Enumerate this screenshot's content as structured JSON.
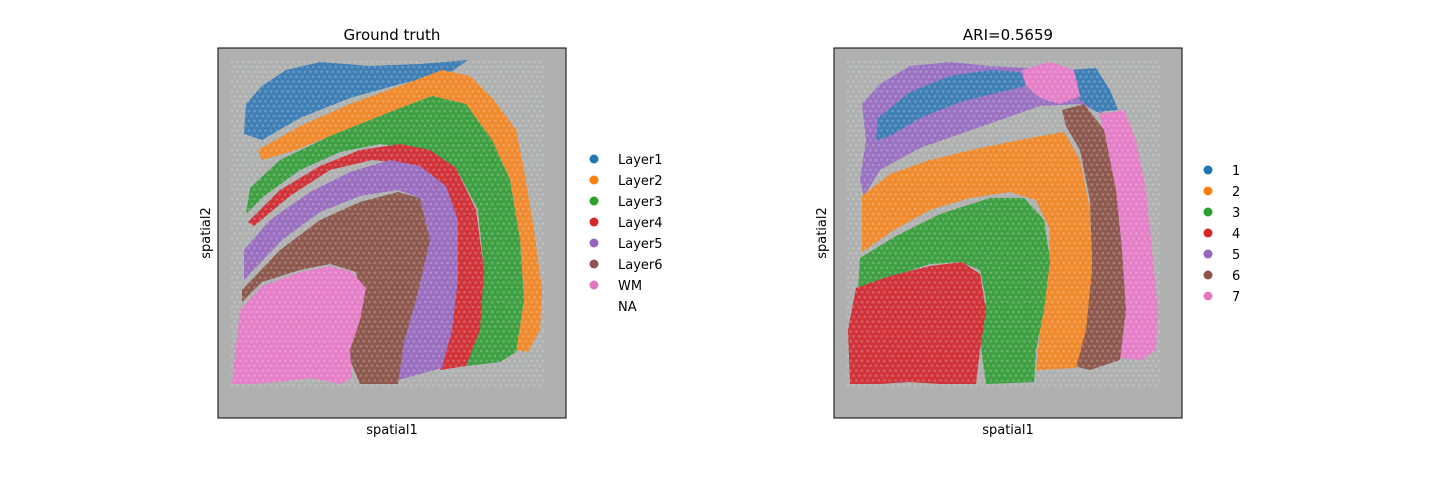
{
  "chart_data": [
    {
      "type": "scatter",
      "title": "Ground truth",
      "xlabel": "spatial1",
      "ylabel": "spatial2",
      "grid": false,
      "legend_position": "right",
      "legend": [
        {
          "label": "Layer1",
          "color": "#1f77b4"
        },
        {
          "label": "Layer2",
          "color": "#ff7f0e"
        },
        {
          "label": "Layer3",
          "color": "#2ca02c"
        },
        {
          "label": "Layer4",
          "color": "#d62728"
        },
        {
          "label": "Layer5",
          "color": "#9467bd"
        },
        {
          "label": "Layer6",
          "color": "#8c564b"
        },
        {
          "label": "WM",
          "color": "#e377c2"
        },
        {
          "label": "NA",
          "color": "none"
        }
      ]
    },
    {
      "type": "scatter",
      "title": "ARI=0.5659",
      "xlabel": "spatial1",
      "ylabel": "spatial2",
      "grid": false,
      "legend_position": "right",
      "legend": [
        {
          "label": "1",
          "color": "#1f77b4"
        },
        {
          "label": "2",
          "color": "#ff7f0e"
        },
        {
          "label": "3",
          "color": "#2ca02c"
        },
        {
          "label": "4",
          "color": "#d62728"
        },
        {
          "label": "5",
          "color": "#9467bd"
        },
        {
          "label": "6",
          "color": "#8c564b"
        },
        {
          "label": "7",
          "color": "#e377c2"
        }
      ]
    }
  ],
  "colors": {
    "tissue_background": "#a7aaa8",
    "tissue_edge": "#8f8a98"
  }
}
